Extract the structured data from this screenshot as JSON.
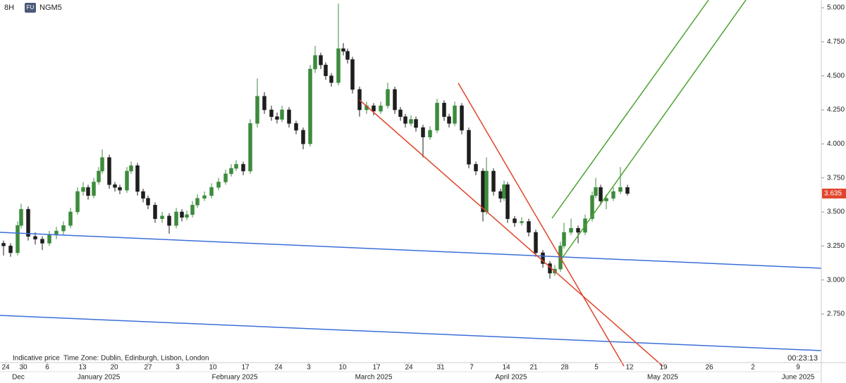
{
  "chart_data": {
    "type": "candlestick",
    "interval": "8H",
    "badge": "FU",
    "symbol": "NGM5",
    "note": "Indicative price",
    "timezone": "Time Zone: Dublin, Edinburgh, Lisbon, London",
    "countdown": "00:23:13",
    "last_price": {
      "value": 3.635,
      "label": "3.635"
    },
    "up_color": "#3d8b3d",
    "down_color": "#1e1e1e",
    "xlim": [
      0,
      1165
    ],
    "ylim": [
      2.393,
      5.057
    ],
    "yticks": [
      {
        "value": 2.75,
        "label": "2.750"
      },
      {
        "value": 3.0,
        "label": "3.000"
      },
      {
        "value": 3.25,
        "label": "3.250"
      },
      {
        "value": 3.5,
        "label": "3.500"
      },
      {
        "value": 3.75,
        "label": "3.750"
      },
      {
        "value": 4.0,
        "label": "4.000"
      },
      {
        "value": 4.25,
        "label": "4.250"
      },
      {
        "value": 4.5,
        "label": "4.500"
      },
      {
        "value": 4.75,
        "label": "4.750"
      },
      {
        "value": 5.0,
        "label": "5.000"
      }
    ],
    "xticks": [
      {
        "value": 8,
        "label": "24"
      },
      {
        "value": 33,
        "label": "30"
      },
      {
        "value": 67,
        "label": "6"
      },
      {
        "value": 117,
        "label": "13"
      },
      {
        "value": 162,
        "label": "20"
      },
      {
        "value": 210,
        "label": "27"
      },
      {
        "value": 252,
        "label": "3"
      },
      {
        "value": 302,
        "label": "10"
      },
      {
        "value": 348,
        "label": "17"
      },
      {
        "value": 395,
        "label": "24"
      },
      {
        "value": 438,
        "label": "3"
      },
      {
        "value": 486,
        "label": "10"
      },
      {
        "value": 534,
        "label": "17"
      },
      {
        "value": 580,
        "label": "24"
      },
      {
        "value": 625,
        "label": "31"
      },
      {
        "value": 669,
        "label": "7"
      },
      {
        "value": 718,
        "label": "14"
      },
      {
        "value": 757,
        "label": "21"
      },
      {
        "value": 801,
        "label": "28"
      },
      {
        "value": 846,
        "label": "5"
      },
      {
        "value": 893,
        "label": "12"
      },
      {
        "value": 941,
        "label": "19"
      },
      {
        "value": 1006,
        "label": "26"
      },
      {
        "value": 1068,
        "label": "2"
      },
      {
        "value": 1132,
        "label": "9"
      }
    ],
    "month_ticks": [
      {
        "value": 26,
        "label": "Dec"
      },
      {
        "value": 140,
        "label": "January 2025"
      },
      {
        "value": 333,
        "label": "February 2025"
      },
      {
        "value": 530,
        "label": "March 2025"
      },
      {
        "value": 725,
        "label": "April 2025"
      },
      {
        "value": 940,
        "label": "May 2025"
      },
      {
        "value": 1132,
        "label": "June 2025"
      }
    ],
    "x": [
      5,
      15,
      25,
      30,
      40,
      50,
      60,
      70,
      80,
      90,
      100,
      110,
      118,
      125,
      133,
      140,
      145,
      155,
      163,
      170,
      180,
      186,
      195,
      203,
      210,
      220,
      230,
      240,
      250,
      258,
      265,
      273,
      280,
      290,
      300,
      310,
      320,
      328,
      335,
      345,
      355,
      365,
      375,
      385,
      393,
      400,
      410,
      420,
      430,
      440,
      447,
      455,
      462,
      470,
      480,
      487,
      493,
      500,
      510,
      520,
      530,
      540,
      550,
      560,
      568,
      575,
      583,
      590,
      600,
      610,
      620,
      630,
      637,
      645,
      655,
      665,
      675,
      685,
      690,
      700,
      710,
      715,
      720,
      730,
      740,
      750,
      760,
      770,
      780,
      787,
      795,
      800,
      810,
      820,
      830,
      840,
      845,
      852,
      860,
      870,
      880,
      890
    ],
    "open": [
      3.27,
      3.25,
      3.2,
      3.4,
      3.52,
      3.32,
      3.3,
      3.27,
      3.33,
      3.36,
      3.4,
      3.5,
      3.65,
      3.68,
      3.62,
      3.72,
      3.8,
      3.9,
      3.7,
      3.68,
      3.66,
      3.8,
      3.84,
      3.65,
      3.6,
      3.55,
      3.45,
      3.47,
      3.4,
      3.5,
      3.46,
      3.48,
      3.55,
      3.6,
      3.62,
      3.68,
      3.72,
      3.78,
      3.82,
      3.85,
      3.8,
      4.15,
      4.35,
      4.25,
      4.2,
      4.18,
      4.25,
      4.15,
      4.1,
      4.0,
      4.55,
      4.65,
      4.58,
      4.5,
      4.45,
      4.7,
      4.68,
      4.62,
      4.4,
      4.25,
      4.28,
      4.24,
      4.28,
      4.4,
      4.25,
      4.2,
      4.15,
      4.18,
      4.12,
      4.05,
      4.1,
      4.3,
      4.2,
      4.15,
      4.28,
      4.1,
      3.85,
      3.8,
      3.5,
      3.8,
      3.65,
      3.6,
      3.7,
      3.45,
      3.42,
      3.43,
      3.35,
      3.2,
      3.12,
      3.05,
      3.08,
      3.25,
      3.35,
      3.38,
      3.35,
      3.45,
      3.62,
      3.68,
      3.58,
      3.6,
      3.65,
      3.68
    ],
    "high": [
      3.29,
      3.27,
      3.43,
      3.56,
      3.54,
      3.35,
      3.32,
      3.36,
      3.39,
      3.43,
      3.53,
      3.68,
      3.72,
      3.7,
      3.75,
      3.83,
      3.96,
      3.92,
      3.72,
      3.7,
      3.83,
      3.87,
      3.86,
      3.67,
      3.62,
      3.57,
      3.5,
      3.49,
      3.53,
      3.52,
      3.51,
      3.58,
      3.63,
      3.65,
      3.71,
      3.75,
      3.81,
      3.85,
      3.88,
      3.87,
      4.18,
      4.48,
      4.38,
      4.28,
      4.23,
      4.28,
      4.27,
      4.17,
      4.12,
      4.58,
      4.72,
      4.67,
      4.6,
      4.52,
      5.03,
      4.74,
      4.7,
      4.64,
      4.42,
      4.31,
      4.3,
      4.31,
      4.45,
      4.42,
      4.27,
      4.22,
      4.21,
      4.2,
      4.14,
      4.13,
      4.33,
      4.32,
      4.22,
      4.31,
      4.3,
      4.12,
      3.87,
      3.82,
      3.9,
      3.82,
      3.67,
      3.73,
      3.72,
      3.47,
      3.46,
      3.45,
      3.37,
      3.22,
      3.14,
      3.11,
      3.28,
      3.42,
      3.45,
      3.4,
      3.48,
      3.65,
      3.75,
      3.7,
      3.63,
      3.68,
      3.83,
      3.7
    ],
    "low": [
      3.18,
      3.17,
      3.18,
      3.38,
      3.29,
      3.26,
      3.22,
      3.25,
      3.3,
      3.33,
      3.38,
      3.48,
      3.62,
      3.59,
      3.6,
      3.7,
      3.78,
      3.67,
      3.65,
      3.63,
      3.64,
      3.78,
      3.62,
      3.57,
      3.52,
      3.42,
      3.42,
      3.34,
      3.38,
      3.43,
      3.44,
      3.46,
      3.53,
      3.58,
      3.6,
      3.66,
      3.7,
      3.76,
      3.8,
      3.77,
      3.78,
      4.12,
      4.22,
      4.17,
      4.15,
      4.16,
      4.12,
      4.07,
      3.96,
      3.98,
      4.52,
      4.55,
      4.47,
      4.42,
      4.43,
      4.65,
      4.59,
      4.37,
      4.2,
      4.22,
      4.21,
      4.22,
      4.26,
      4.22,
      4.17,
      4.12,
      4.13,
      4.09,
      3.9,
      4.03,
      4.08,
      4.17,
      4.12,
      4.13,
      4.07,
      3.82,
      3.77,
      3.43,
      3.48,
      3.62,
      3.57,
      3.58,
      3.42,
      3.39,
      3.4,
      3.32,
      3.17,
      3.09,
      3.01,
      3.03,
      3.06,
      3.23,
      3.33,
      3.27,
      3.33,
      3.43,
      3.6,
      3.55,
      3.52,
      3.58,
      3.63,
      3.62
    ],
    "close": [
      3.25,
      3.2,
      3.4,
      3.52,
      3.32,
      3.3,
      3.27,
      3.33,
      3.36,
      3.4,
      3.5,
      3.65,
      3.68,
      3.62,
      3.72,
      3.8,
      3.9,
      3.7,
      3.68,
      3.66,
      3.8,
      3.84,
      3.65,
      3.6,
      3.55,
      3.45,
      3.47,
      3.4,
      3.5,
      3.46,
      3.48,
      3.55,
      3.6,
      3.62,
      3.68,
      3.72,
      3.78,
      3.82,
      3.85,
      3.8,
      4.15,
      4.35,
      4.25,
      4.2,
      4.18,
      4.25,
      4.15,
      4.1,
      4.0,
      4.55,
      4.65,
      4.58,
      4.5,
      4.45,
      4.7,
      4.68,
      4.62,
      4.4,
      4.25,
      4.28,
      4.24,
      4.28,
      4.4,
      4.25,
      4.2,
      4.15,
      4.18,
      4.12,
      4.05,
      4.1,
      4.3,
      4.2,
      4.15,
      4.28,
      4.1,
      3.85,
      3.8,
      3.5,
      3.8,
      3.65,
      3.6,
      3.7,
      3.45,
      3.42,
      3.43,
      3.35,
      3.2,
      3.12,
      3.05,
      3.08,
      3.25,
      3.35,
      3.38,
      3.35,
      3.45,
      3.62,
      3.68,
      3.58,
      3.6,
      3.65,
      3.68,
      3.635
    ]
  }
}
